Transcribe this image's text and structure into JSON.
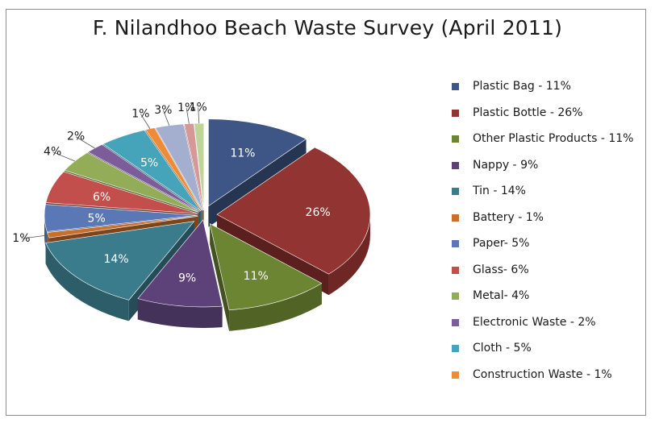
{
  "chart_data": {
    "type": "pie",
    "title": "F. Nilandhoo Beach Waste Survey (April 2011)",
    "legend_position": "right",
    "slices": [
      {
        "name": "Plastic Bag - 11%",
        "value": 11,
        "label": "11%",
        "color": "#3e5685"
      },
      {
        "name": "Plastic Bottle - 26%",
        "value": 26,
        "label": "26%",
        "color": "#923431"
      },
      {
        "name": "Other Plastic Products - 11%",
        "value": 11,
        "label": "11%",
        "color": "#6c8533"
      },
      {
        "name": "Nappy - 9%",
        "value": 9,
        "label": "9%",
        "color": "#5c4279"
      },
      {
        "name": "Tin - 14%",
        "value": 14,
        "label": "14%",
        "color": "#3a7c8c"
      },
      {
        "name": "Battery - 1%",
        "value": 1,
        "label": "1%",
        "color": "#c86f2c"
      },
      {
        "name": "Paper- 5%",
        "value": 5,
        "label": "5%",
        "color": "#5a78b5"
      },
      {
        "name": "Glass- 6%",
        "value": 6,
        "label": "6%",
        "color": "#c24f4c"
      },
      {
        "name": "Metal- 4%",
        "value": 4,
        "label": "4%",
        "color": "#93ac57"
      },
      {
        "name": "Electronic Waste - 2%",
        "value": 2,
        "label": "2%",
        "color": "#7c5d9a"
      },
      {
        "name": "Cloth - 5%",
        "value": 5,
        "label": "5%",
        "color": "#45a3ba"
      },
      {
        "name": "Construction Waste - 1%",
        "value": 1,
        "label": "1%",
        "color": "#ef8b36"
      },
      {
        "value": 3,
        "label": "3%",
        "color": "#a4afd0"
      },
      {
        "value": 1,
        "label": "1%",
        "color": "#d69897"
      },
      {
        "value": 1,
        "label": "1%",
        "color": "#bfd598"
      }
    ]
  }
}
